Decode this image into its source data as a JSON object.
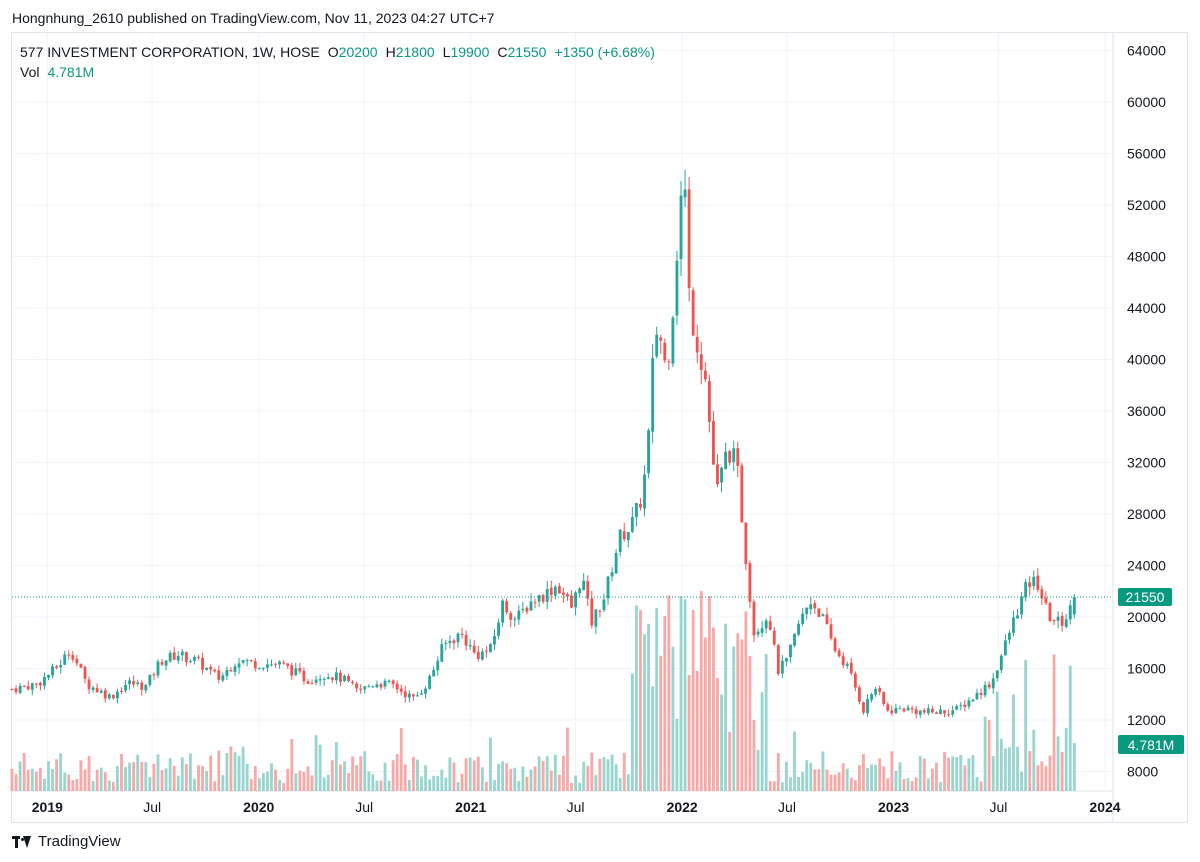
{
  "header": {
    "published_line": "Hongnhung_2610 published on TradingView.com, Nov 11, 2023 04:27 UTC+7"
  },
  "legend": {
    "symbol": "577 INVESTMENT CORPORATION, 1W, HOSE",
    "o_label": "O",
    "o_value": "20200",
    "h_label": "H",
    "h_value": "21800",
    "l_label": "L",
    "l_value": "19900",
    "c_label": "C",
    "c_value": "21550",
    "change": "+1350 (+6.68%)",
    "vol_label": "Vol",
    "vol_value": "4.781M"
  },
  "footer": {
    "brand": "TradingView",
    "logo_icon": "tradingview-logo-icon"
  },
  "colors": {
    "up": "#26a69a",
    "down": "#ef5350",
    "up_vol": "#99d5cf",
    "down_vol": "#f7a9a7",
    "grid": "#f0f3fa",
    "price_tag": "#089981"
  },
  "chart_data": {
    "type": "candlestick",
    "interval": "1W",
    "exchange": "HOSE",
    "y_ticks": [
      8000,
      12000,
      16000,
      20000,
      24000,
      28000,
      32000,
      36000,
      40000,
      44000,
      48000,
      52000,
      56000,
      60000,
      64000
    ],
    "x_ticks": [
      {
        "label": "2019",
        "date": "2019-01-01",
        "bold": true
      },
      {
        "label": "Jul",
        "date": "2019-07-01",
        "bold": false
      },
      {
        "label": "2020",
        "date": "2020-01-01",
        "bold": true
      },
      {
        "label": "Jul",
        "date": "2020-07-01",
        "bold": false
      },
      {
        "label": "2021",
        "date": "2021-01-01",
        "bold": true
      },
      {
        "label": "Jul",
        "date": "2021-07-01",
        "bold": false
      },
      {
        "label": "2022",
        "date": "2022-01-01",
        "bold": true
      },
      {
        "label": "Jul",
        "date": "2022-07-01",
        "bold": false
      },
      {
        "label": "2023",
        "date": "2023-01-01",
        "bold": true
      },
      {
        "label": "Jul",
        "date": "2023-07-01",
        "bold": false
      },
      {
        "label": "2024",
        "date": "2024-01-01",
        "bold": true
      }
    ],
    "last_price": 21550,
    "last_price_label": "21550",
    "last_volume_label": "4.781M",
    "ylim": [
      6800,
      65500
    ],
    "close_path": [
      [
        "2018-11-01",
        14400
      ],
      [
        "2018-12-15",
        14800
      ],
      [
        "2019-01-20",
        16200
      ],
      [
        "2019-02-10",
        17500
      ],
      [
        "2019-03-10",
        14800
      ],
      [
        "2019-04-20",
        13800
      ],
      [
        "2019-05-20",
        14900
      ],
      [
        "2019-06-20",
        14600
      ],
      [
        "2019-07-15",
        16600
      ],
      [
        "2019-08-15",
        17100
      ],
      [
        "2019-09-15",
        16600
      ],
      [
        "2019-10-25",
        15200
      ],
      [
        "2019-11-25",
        16700
      ],
      [
        "2019-12-25",
        16400
      ],
      [
        "2020-02-10",
        16300
      ],
      [
        "2020-03-25",
        15100
      ],
      [
        "2020-04-25",
        15600
      ],
      [
        "2020-05-25",
        15200
      ],
      [
        "2020-06-20",
        14200
      ],
      [
        "2020-07-20",
        14900
      ],
      [
        "2020-08-20",
        14700
      ],
      [
        "2020-09-25",
        13600
      ],
      [
        "2020-10-20",
        15000
      ],
      [
        "2020-11-15",
        17800
      ],
      [
        "2020-12-15",
        18700
      ],
      [
        "2021-01-10",
        17000
      ],
      [
        "2021-02-05",
        17500
      ],
      [
        "2021-02-25",
        21000
      ],
      [
        "2021-03-20",
        19800
      ],
      [
        "2021-04-15",
        21200
      ],
      [
        "2021-05-10",
        21800
      ],
      [
        "2021-05-30",
        22500
      ],
      [
        "2021-06-25",
        20700
      ],
      [
        "2021-07-12",
        23300
      ],
      [
        "2021-07-28",
        19500
      ],
      [
        "2021-08-20",
        21600
      ],
      [
        "2021-09-15",
        26200
      ],
      [
        "2021-10-05",
        27100
      ],
      [
        "2021-10-25",
        29500
      ],
      [
        "2021-11-05",
        34500
      ],
      [
        "2021-11-15",
        42500
      ],
      [
        "2021-11-25",
        41500
      ],
      [
        "2021-12-05",
        39000
      ],
      [
        "2021-12-15",
        43500
      ],
      [
        "2021-12-28",
        51500
      ],
      [
        "2022-01-04",
        55000
      ],
      [
        "2022-01-14",
        44000
      ],
      [
        "2022-02-10",
        38500
      ],
      [
        "2022-03-01",
        29500
      ],
      [
        "2022-03-20",
        33000
      ],
      [
        "2022-04-05",
        32000
      ],
      [
        "2022-04-20",
        25000
      ],
      [
        "2022-05-05",
        18800
      ],
      [
        "2022-05-30",
        20200
      ],
      [
        "2022-06-15",
        15800
      ],
      [
        "2022-07-01",
        16600
      ],
      [
        "2022-07-20",
        19300
      ],
      [
        "2022-08-10",
        21300
      ],
      [
        "2022-08-30",
        20100
      ],
      [
        "2022-09-20",
        17600
      ],
      [
        "2022-10-15",
        16000
      ],
      [
        "2022-11-10",
        12800
      ],
      [
        "2022-11-30",
        14600
      ],
      [
        "2022-12-20",
        12700
      ],
      [
        "2023-01-20",
        12900
      ],
      [
        "2023-02-20",
        12600
      ],
      [
        "2023-03-20",
        12600
      ],
      [
        "2023-04-20",
        12800
      ],
      [
        "2023-05-20",
        13800
      ],
      [
        "2023-06-20",
        15000
      ],
      [
        "2023-07-10",
        17500
      ],
      [
        "2023-07-31",
        20200
      ],
      [
        "2023-08-20",
        22500
      ],
      [
        "2023-09-05",
        22800
      ],
      [
        "2023-09-25",
        20100
      ],
      [
        "2023-10-15",
        19500
      ],
      [
        "2023-10-30",
        20200
      ],
      [
        "2023-11-10",
        21550
      ]
    ]
  }
}
